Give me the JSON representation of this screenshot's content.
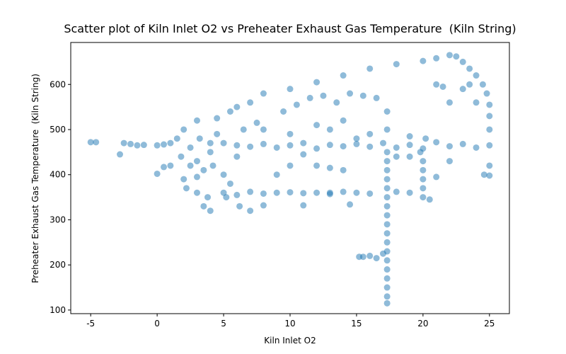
{
  "chart_data": {
    "type": "scatter",
    "title": "Scatter plot of Kiln Inlet O2 vs Preheater Exhaust Gas Temperature  (Kiln String)",
    "x_label": "Kiln Inlet O2",
    "y_label": "Preheater Exhaust Gas Temperature  (Kiln String)",
    "color": "#1f77b4",
    "alpha": 0.5,
    "grid": false,
    "xlim": [
      -6.5,
      26.5
    ],
    "ylim": [
      92,
      693
    ],
    "xticks": [
      -5,
      0,
      5,
      10,
      15,
      20,
      25
    ],
    "yticks": [
      100,
      200,
      300,
      400,
      500,
      600
    ],
    "x": [
      -5,
      -4.6,
      -2.8,
      -2.5,
      -2,
      -1.5,
      -1,
      0,
      0.5,
      1,
      6,
      7,
      8,
      9,
      10,
      11,
      12,
      13,
      14,
      15,
      16,
      17,
      18,
      19,
      20,
      21,
      22,
      23,
      24,
      25,
      1.5,
      2,
      2.5,
      3,
      3.5,
      4,
      4.5,
      5,
      2,
      3,
      3.5,
      4,
      2.5,
      3,
      4.5,
      5,
      5.5,
      6,
      6.5,
      3.8,
      1.8,
      2.2,
      3.2,
      4.2,
      5.2,
      6.2,
      7,
      7.5,
      4,
      3,
      17.3,
      17.3,
      17.3,
      17.3,
      17.3,
      17.3,
      17.3,
      17.3,
      17.3,
      17.3,
      17.3,
      17.3,
      17.3,
      17.3,
      17.3,
      17.3,
      17.3,
      17.3,
      17.3,
      17.3,
      5.5,
      7,
      8,
      10,
      12,
      14,
      16,
      18,
      20,
      21,
      22,
      22.5,
      23,
      23.5,
      24,
      24.5,
      24.8,
      25,
      25,
      25,
      25,
      24.6,
      25,
      20,
      20,
      20,
      20,
      20,
      19.8,
      20.2,
      5,
      6,
      7,
      8,
      9,
      10,
      11,
      12,
      13,
      14,
      15,
      16,
      18,
      19,
      20.5,
      8,
      13,
      11,
      14.5,
      15.2,
      15.5,
      16,
      16.5,
      17,
      12,
      9,
      10,
      13,
      14,
      6,
      9.5,
      10.5,
      11.5,
      12.5,
      13.5,
      14.5,
      15.5,
      16.5,
      21,
      22,
      23,
      24,
      21.5,
      23.5,
      0,
      0.5,
      1,
      21,
      22,
      19,
      8,
      10,
      12,
      14,
      15,
      16,
      19,
      18,
      11,
      13
    ],
    "y": [
      472,
      472,
      445,
      470,
      468,
      465,
      466,
      465,
      467,
      470,
      465,
      462,
      468,
      460,
      465,
      470,
      458,
      466,
      463,
      468,
      462,
      470,
      460,
      466,
      458,
      472,
      463,
      468,
      460,
      465,
      480,
      500,
      460,
      430,
      410,
      450,
      490,
      470,
      390,
      360,
      330,
      320,
      420,
      520,
      525,
      400,
      380,
      440,
      500,
      350,
      440,
      370,
      480,
      420,
      350,
      330,
      320,
      515,
      470,
      395,
      115,
      130,
      150,
      170,
      190,
      210,
      230,
      250,
      270,
      290,
      310,
      330,
      350,
      370,
      390,
      410,
      430,
      450,
      500,
      540,
      540,
      560,
      580,
      590,
      605,
      620,
      635,
      645,
      652,
      658,
      665,
      662,
      650,
      635,
      620,
      600,
      580,
      555,
      530,
      500,
      420,
      400,
      398,
      350,
      370,
      390,
      410,
      430,
      450,
      480,
      360,
      355,
      362,
      358,
      360,
      361,
      359,
      360,
      357,
      362,
      360,
      358,
      362,
      360,
      345,
      332,
      360,
      332,
      334,
      218,
      218,
      220,
      215,
      225,
      420,
      400,
      420,
      415,
      410,
      550,
      540,
      555,
      570,
      575,
      560,
      580,
      575,
      570,
      600,
      560,
      590,
      560,
      595,
      600,
      402,
      417,
      420,
      395,
      430,
      440,
      500,
      490,
      510,
      520,
      480,
      490,
      485,
      440,
      445,
      500
    ]
  }
}
